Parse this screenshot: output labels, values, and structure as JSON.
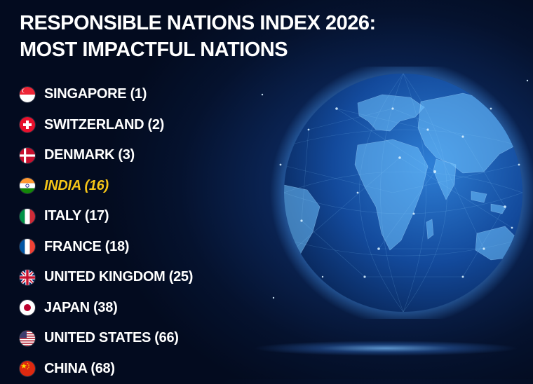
{
  "title_line1": "RESPONSIBLE NATIONS INDEX 2026:",
  "title_line2": "MOST IMPACTFUL NATIONS",
  "highlight_color": "#f5c518",
  "nations": [
    {
      "label": "SINGAPORE (1)",
      "flag": "singapore-flag-icon"
    },
    {
      "label": "SWITZERLAND (2)",
      "flag": "switzerland-flag-icon"
    },
    {
      "label": "DENMARK (3)",
      "flag": "denmark-flag-icon"
    },
    {
      "label": "INDIA (16)",
      "flag": "india-flag-icon",
      "highlighted": true
    },
    {
      "label": "ITALY (17)",
      "flag": "italy-flag-icon"
    },
    {
      "label": "FRANCE (18)",
      "flag": "france-flag-icon"
    },
    {
      "label": "UNITED KINGDOM (25)",
      "flag": "uk-flag-icon"
    },
    {
      "label": "JAPAN (38)",
      "flag": "japan-flag-icon"
    },
    {
      "label": "UNITED STATES (66)",
      "flag": "usa-flag-icon"
    },
    {
      "label": "CHINA (68)",
      "flag": "china-flag-icon"
    }
  ],
  "background_image": "glowing-network-globe-icon"
}
